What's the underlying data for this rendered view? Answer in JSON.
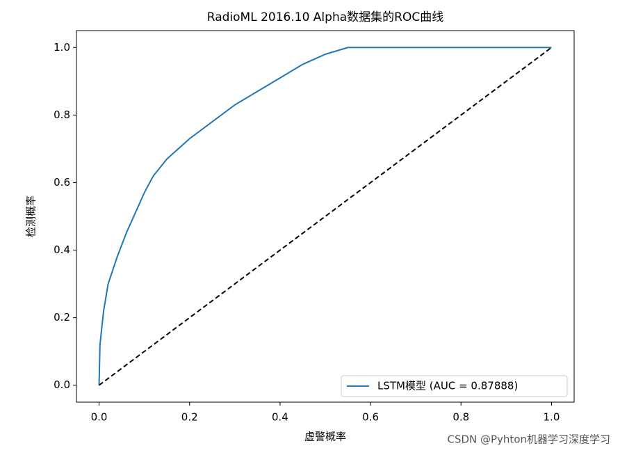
{
  "chart_data": {
    "type": "line",
    "title": "RadioML 2016.10 Alpha数据集的ROC曲线",
    "x_label": "虚警概率",
    "y_label": "检测概率",
    "watermark": "CSDN @Pyhton机器学习深度学习",
    "xlim": [
      -0.05,
      1.05
    ],
    "ylim": [
      -0.05,
      1.05
    ],
    "xticks": [
      {
        "value": 0,
        "label": "0.0"
      },
      0.2,
      0.4,
      0.6,
      0.8,
      {
        "value": 1,
        "label": "1.0"
      }
    ],
    "yticks": [
      {
        "value": 0,
        "label": "0.0"
      },
      0.2,
      0.4,
      0.6,
      0.8,
      {
        "value": 1,
        "label": "1.0"
      }
    ],
    "legend": "lower right",
    "series": [
      {
        "name": "LSTM模型 (AUC = 0.87888)",
        "color": "#1f77b4",
        "x": [
          0,
          0.002,
          0.01,
          0.02,
          0.04,
          0.06,
          0.08,
          0.1,
          0.12,
          0.15,
          0.2,
          0.25,
          0.3,
          0.35,
          0.4,
          0.45,
          0.5,
          0.55,
          1
        ],
        "values": [
          0,
          0.12,
          0.22,
          0.3,
          0.38,
          0.45,
          0.51,
          0.57,
          0.62,
          0.67,
          0.73,
          0.78,
          0.83,
          0.87,
          0.91,
          0.95,
          0.98,
          1,
          1
        ]
      },
      {
        "color": "#000000",
        "dashed": true,
        "x": [
          0,
          1
        ],
        "values": [
          0,
          1
        ]
      }
    ]
  }
}
